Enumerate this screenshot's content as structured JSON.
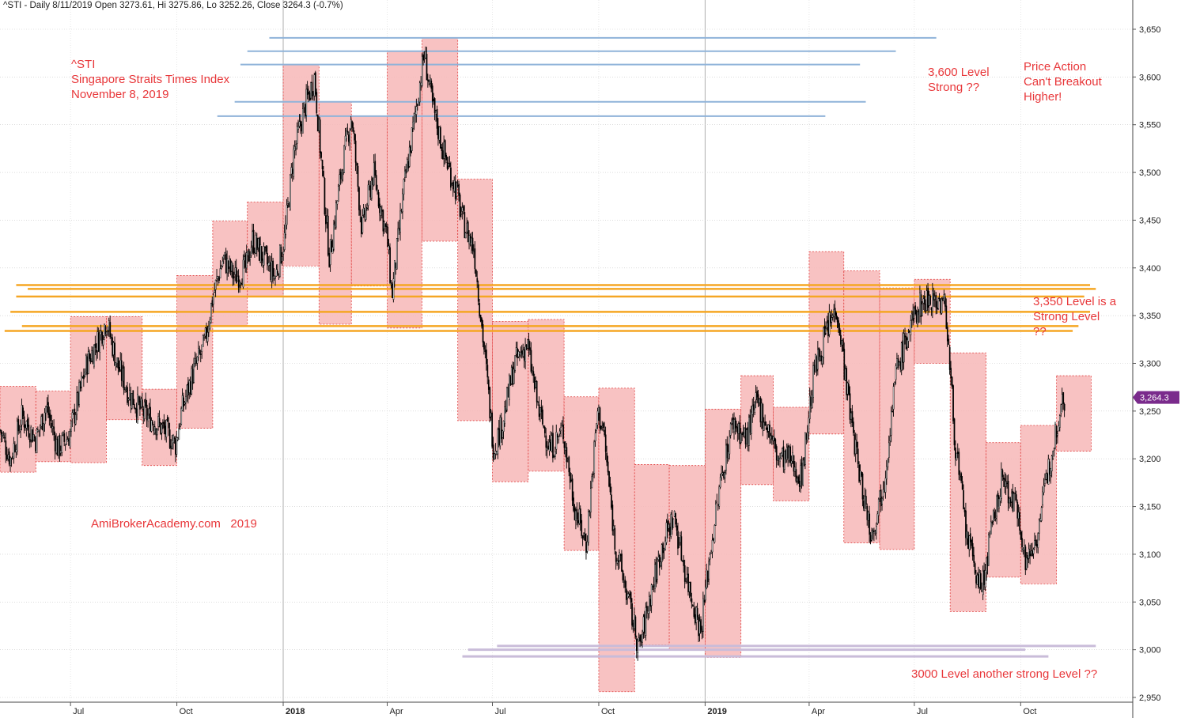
{
  "header": "^STI - Daily 8/11/2019 Open 3273.61, Hi 3275.86, Lo 3252.26, Close 3264.3 (-0.7%)",
  "annotations": {
    "title": [
      "^STI",
      "Singapore Straits Times Index",
      "November 8, 2019"
    ],
    "level3600": [
      "3,600 Level",
      "Strong ??"
    ],
    "price_action": [
      "Price Action",
      "Can't Breakout",
      "Higher!"
    ],
    "level3350": [
      "3,350 Level is a",
      "Strong Level",
      "??"
    ],
    "level3000": "3000 Level another strong Level ??",
    "watermark": "AmiBrokerAcademy.com   2019"
  },
  "last_price_label": "3,264.3",
  "colors": {
    "box_fill": "#f7b7b7",
    "box_border": "#e04040",
    "resistance_blue": "#8fb3d9",
    "resistance_orange": "#f5a623",
    "support_purple": "#c9bcd9",
    "annotation_red": "#e8373a",
    "last_price_badge": "#7a2b8c"
  },
  "chart_data": {
    "type": "candlestick",
    "y_ticks": [
      "3,650",
      "3,600",
      "3,550",
      "3,500",
      "3,450",
      "3,400",
      "3,350",
      "3,300",
      "3,250",
      "3,200",
      "3,150",
      "3,100",
      "3,050",
      "3,000",
      "2,950"
    ],
    "y_range": [
      2940,
      3665
    ],
    "x_ticks": [
      {
        "label": "Jul",
        "bold": false
      },
      {
        "label": "Oct",
        "bold": false
      },
      {
        "label": "2018",
        "bold": true
      },
      {
        "label": "Apr",
        "bold": false
      },
      {
        "label": "Jul",
        "bold": false
      },
      {
        "label": "Oct",
        "bold": false
      },
      {
        "label": "2019",
        "bold": true
      },
      {
        "label": "Apr",
        "bold": false
      },
      {
        "label": "Jul",
        "bold": false
      },
      {
        "label": "Oct",
        "bold": false
      }
    ],
    "monthly_boxes": [
      {
        "month": "2017-05",
        "high": 3276,
        "low": 3186
      },
      {
        "month": "2017-06",
        "high": 3271,
        "low": 3197
      },
      {
        "month": "2017-07",
        "high": 3349,
        "low": 3196
      },
      {
        "month": "2017-08",
        "high": 3349,
        "low": 3241
      },
      {
        "month": "2017-09",
        "high": 3273,
        "low": 3193
      },
      {
        "month": "2017-10",
        "high": 3392,
        "low": 3232
      },
      {
        "month": "2017-11",
        "high": 3449,
        "low": 3339
      },
      {
        "month": "2017-12",
        "high": 3469,
        "low": 3370
      },
      {
        "month": "2018-01",
        "high": 3613,
        "low": 3402
      },
      {
        "month": "2018-02",
        "high": 3574,
        "low": 3341
      },
      {
        "month": "2018-03",
        "high": 3559,
        "low": 3381
      },
      {
        "month": "2018-04",
        "high": 3627,
        "low": 3337
      },
      {
        "month": "2018-05",
        "high": 3641,
        "low": 3428
      },
      {
        "month": "2018-06",
        "high": 3493,
        "low": 3240
      },
      {
        "month": "2018-07",
        "high": 3344,
        "low": 3176
      },
      {
        "month": "2018-08",
        "high": 3346,
        "low": 3187
      },
      {
        "month": "2018-09",
        "high": 3265,
        "low": 3104
      },
      {
        "month": "2018-10",
        "high": 3274,
        "low": 2956
      },
      {
        "month": "2018-11",
        "high": 3194,
        "low": 3005
      },
      {
        "month": "2018-12",
        "high": 3193,
        "low": 3000
      },
      {
        "month": "2019-01",
        "high": 3252,
        "low": 2992
      },
      {
        "month": "2019-02",
        "high": 3287,
        "low": 3173
      },
      {
        "month": "2019-03",
        "high": 3254,
        "low": 3156
      },
      {
        "month": "2019-04",
        "high": 3417,
        "low": 3226
      },
      {
        "month": "2019-05",
        "high": 3397,
        "low": 3112
      },
      {
        "month": "2019-06",
        "high": 3379,
        "low": 3105
      },
      {
        "month": "2019-07",
        "high": 3388,
        "low": 3300
      },
      {
        "month": "2019-08",
        "high": 3311,
        "low": 3040
      },
      {
        "month": "2019-09",
        "high": 3217,
        "low": 3076
      },
      {
        "month": "2019-10",
        "high": 3235,
        "low": 3069
      },
      {
        "month": "2019-11",
        "high": 3287,
        "low": 3208
      }
    ],
    "close_path": [
      [
        "2017-05-01",
        3230
      ],
      [
        "2017-05-10",
        3200
      ],
      [
        "2017-05-20",
        3245
      ],
      [
        "2017-06-01",
        3220
      ],
      [
        "2017-06-10",
        3255
      ],
      [
        "2017-06-20",
        3210
      ],
      [
        "2017-06-30",
        3225
      ],
      [
        "2017-07-05",
        3250
      ],
      [
        "2017-07-15",
        3300
      ],
      [
        "2017-07-25",
        3325
      ],
      [
        "2017-08-01",
        3345
      ],
      [
        "2017-08-10",
        3300
      ],
      [
        "2017-08-20",
        3270
      ],
      [
        "2017-08-31",
        3250
      ],
      [
        "2017-09-10",
        3240
      ],
      [
        "2017-09-20",
        3230
      ],
      [
        "2017-09-30",
        3215
      ],
      [
        "2017-10-05",
        3250
      ],
      [
        "2017-10-15",
        3290
      ],
      [
        "2017-10-25",
        3320
      ],
      [
        "2017-11-01",
        3370
      ],
      [
        "2017-11-10",
        3410
      ],
      [
        "2017-11-20",
        3390
      ],
      [
        "2017-11-30",
        3400
      ],
      [
        "2017-12-05",
        3430
      ],
      [
        "2017-12-15",
        3410
      ],
      [
        "2017-12-25",
        3390
      ],
      [
        "2018-01-02",
        3430
      ],
      [
        "2018-01-10",
        3520
      ],
      [
        "2018-01-20",
        3570
      ],
      [
        "2018-01-28",
        3600
      ],
      [
        "2018-02-05",
        3480
      ],
      [
        "2018-02-10",
        3410
      ],
      [
        "2018-02-20",
        3500
      ],
      [
        "2018-03-01",
        3560
      ],
      [
        "2018-03-10",
        3440
      ],
      [
        "2018-03-20",
        3500
      ],
      [
        "2018-04-01",
        3430
      ],
      [
        "2018-04-05",
        3370
      ],
      [
        "2018-04-15",
        3480
      ],
      [
        "2018-04-25",
        3560
      ],
      [
        "2018-05-03",
        3625
      ],
      [
        "2018-05-10",
        3570
      ],
      [
        "2018-05-20",
        3520
      ],
      [
        "2018-05-31",
        3480
      ],
      [
        "2018-06-05",
        3450
      ],
      [
        "2018-06-15",
        3420
      ],
      [
        "2018-06-25",
        3300
      ],
      [
        "2018-07-02",
        3210
      ],
      [
        "2018-07-10",
        3240
      ],
      [
        "2018-07-20",
        3300
      ],
      [
        "2018-07-31",
        3320
      ],
      [
        "2018-08-10",
        3250
      ],
      [
        "2018-08-20",
        3210
      ],
      [
        "2018-08-31",
        3230
      ],
      [
        "2018-09-10",
        3150
      ],
      [
        "2018-09-20",
        3110
      ],
      [
        "2018-09-30",
        3250
      ],
      [
        "2018-10-05",
        3230
      ],
      [
        "2018-10-15",
        3110
      ],
      [
        "2018-10-25",
        3060
      ],
      [
        "2018-11-05",
        3000
      ],
      [
        "2018-11-15",
        3060
      ],
      [
        "2018-11-25",
        3110
      ],
      [
        "2018-12-05",
        3140
      ],
      [
        "2018-12-15",
        3080
      ],
      [
        "2018-12-28",
        3020
      ],
      [
        "2019-01-05",
        3100
      ],
      [
        "2019-01-15",
        3180
      ],
      [
        "2019-01-25",
        3240
      ],
      [
        "2019-02-05",
        3220
      ],
      [
        "2019-02-15",
        3260
      ],
      [
        "2019-02-25",
        3230
      ],
      [
        "2019-03-05",
        3200
      ],
      [
        "2019-03-15",
        3200
      ],
      [
        "2019-03-25",
        3180
      ],
      [
        "2019-04-05",
        3290
      ],
      [
        "2019-04-15",
        3330
      ],
      [
        "2019-04-25",
        3360
      ],
      [
        "2019-05-05",
        3260
      ],
      [
        "2019-05-15",
        3180
      ],
      [
        "2019-05-25",
        3120
      ],
      [
        "2019-06-05",
        3180
      ],
      [
        "2019-06-15",
        3290
      ],
      [
        "2019-06-25",
        3330
      ],
      [
        "2019-07-05",
        3360
      ],
      [
        "2019-07-15",
        3370
      ],
      [
        "2019-07-28",
        3360
      ],
      [
        "2019-08-05",
        3220
      ],
      [
        "2019-08-15",
        3120
      ],
      [
        "2019-08-28",
        3060
      ],
      [
        "2019-09-05",
        3120
      ],
      [
        "2019-09-15",
        3180
      ],
      [
        "2019-09-30",
        3140
      ],
      [
        "2019-10-05",
        3090
      ],
      [
        "2019-10-15",
        3120
      ],
      [
        "2019-10-25",
        3190
      ],
      [
        "2019-11-05",
        3260
      ],
      [
        "2019-11-08",
        3264.3
      ]
    ],
    "hlines": [
      {
        "group": "blue",
        "y": 3641,
        "from": "2017-12-20",
        "to": "2019-07-20"
      },
      {
        "group": "blue",
        "y": 3627,
        "from": "2017-12-01",
        "to": "2019-06-15"
      },
      {
        "group": "blue",
        "y": 3613,
        "from": "2017-11-25",
        "to": "2019-05-15"
      },
      {
        "group": "blue",
        "y": 3574,
        "from": "2017-11-20",
        "to": "2019-05-20"
      },
      {
        "group": "blue",
        "y": 3559,
        "from": "2017-11-05",
        "to": "2019-04-15"
      },
      {
        "group": "orange",
        "y": 3382,
        "from": "2017-05-15",
        "to": "2019-11-30"
      },
      {
        "group": "orange",
        "y": 3378,
        "from": "2017-05-25",
        "to": "2019-12-05"
      },
      {
        "group": "orange",
        "y": 3370,
        "from": "2017-05-15",
        "to": "2019-11-25"
      },
      {
        "group": "orange",
        "y": 3354,
        "from": "2017-05-10",
        "to": "2019-11-30"
      },
      {
        "group": "orange",
        "y": 3339,
        "from": "2017-05-20",
        "to": "2019-11-20"
      },
      {
        "group": "orange",
        "y": 3334,
        "from": "2017-05-05",
        "to": "2019-11-15"
      },
      {
        "group": "purple",
        "y": 3004,
        "from": "2018-07-05",
        "to": "2019-12-05"
      },
      {
        "group": "purple",
        "y": 3000,
        "from": "2018-06-10",
        "to": "2019-10-05"
      },
      {
        "group": "purple",
        "y": 2993,
        "from": "2018-06-05",
        "to": "2019-10-25"
      }
    ],
    "last_close": 3264.3
  }
}
